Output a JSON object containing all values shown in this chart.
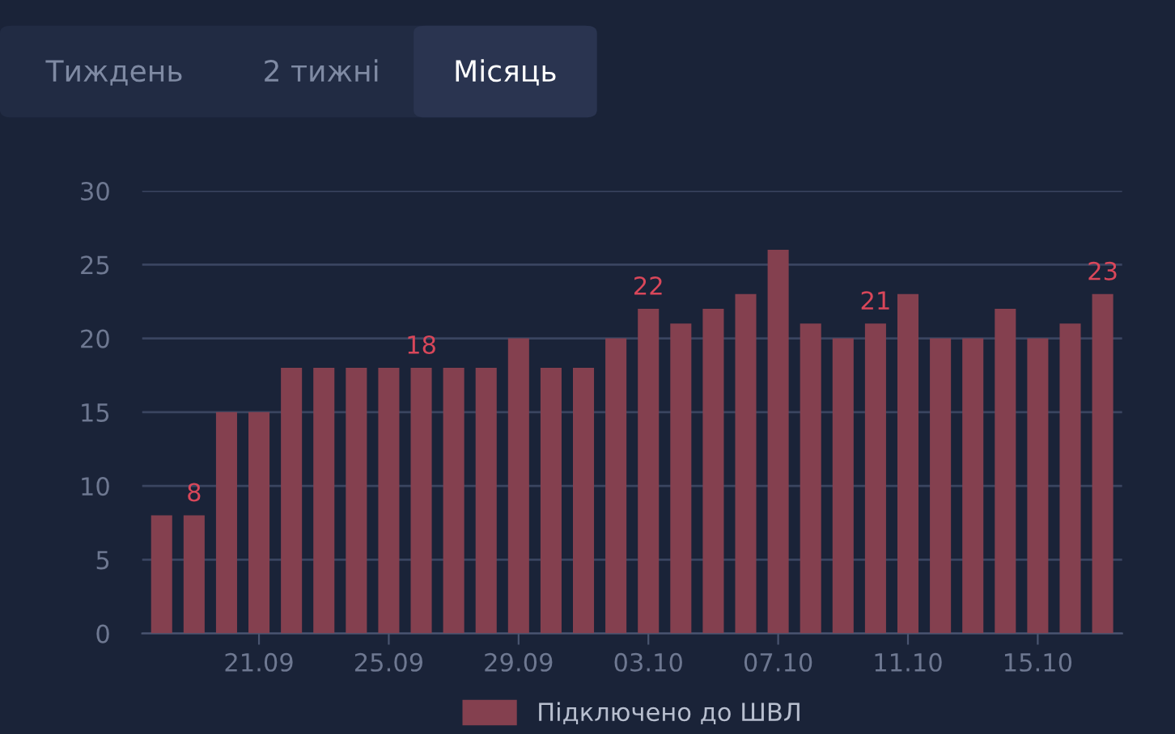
{
  "chart_data": {
    "type": "bar",
    "categories": [
      null,
      null,
      null,
      "21.09",
      null,
      null,
      null,
      "25.09",
      null,
      null,
      null,
      "29.09",
      null,
      null,
      null,
      "03.10",
      null,
      null,
      null,
      "07.10",
      null,
      null,
      null,
      "11.10",
      null,
      null,
      null,
      "15.10",
      null,
      null
    ],
    "series": [
      {
        "name": "Підключено до ШВЛ",
        "color": "#84404f",
        "values": [
          8,
          8,
          15,
          15,
          18,
          18,
          18,
          18,
          18,
          18,
          18,
          20,
          18,
          18,
          20,
          22,
          21,
          22,
          23,
          26,
          21,
          20,
          21,
          23,
          20,
          20,
          22,
          20,
          21,
          23
        ],
        "value_labels": [
          null,
          "8",
          null,
          null,
          null,
          null,
          null,
          null,
          "18",
          null,
          null,
          null,
          null,
          null,
          null,
          "22",
          null,
          null,
          null,
          null,
          null,
          null,
          "21",
          null,
          null,
          null,
          null,
          null,
          null,
          "23"
        ]
      }
    ],
    "ylim": [
      0,
      30
    ],
    "yticks": [
      0,
      5,
      10,
      15,
      20,
      25,
      30
    ],
    "grid": "y",
    "legend": "bottom",
    "annotations": [
      "Тиждень",
      "2 тижні",
      "Місяць"
    ]
  }
}
